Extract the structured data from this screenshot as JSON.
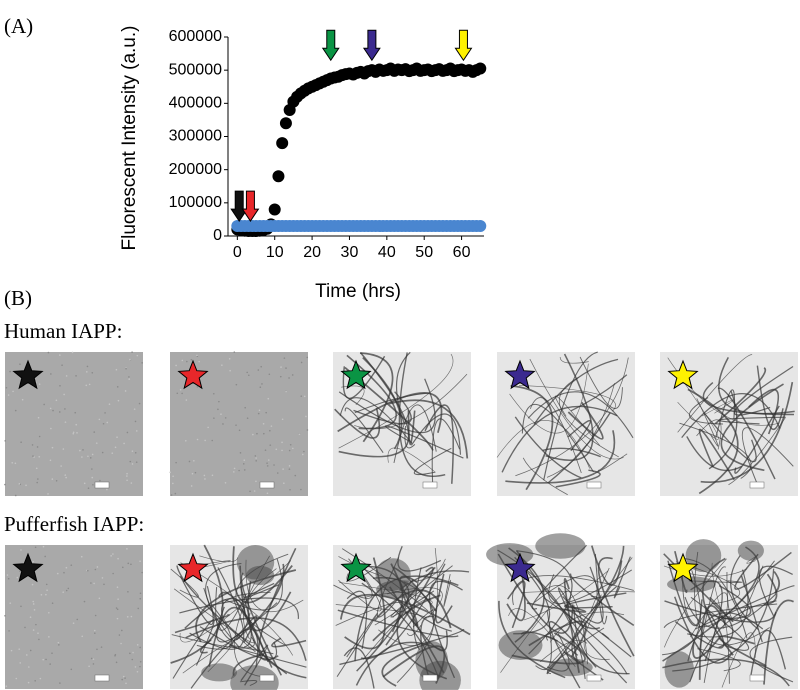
{
  "panel_a_label": "(A)",
  "chart_data": {
    "type": "scatter",
    "x_label": "Time (hrs)",
    "y_label": "Fluorescent Intensity (a.u.)",
    "x": [
      0,
      1,
      2,
      3,
      4,
      5,
      6,
      7,
      8,
      9,
      10,
      11,
      12,
      13,
      14,
      15,
      16,
      17,
      18,
      19,
      20,
      21,
      22,
      23,
      24,
      25,
      26,
      27,
      28,
      29,
      30,
      31,
      32,
      33,
      34,
      35,
      36,
      37,
      38,
      39,
      40,
      41,
      42,
      43,
      44,
      45,
      46,
      47,
      48,
      49,
      50,
      51,
      52,
      53,
      54,
      55,
      56,
      57,
      58,
      59,
      60,
      61,
      62,
      63,
      64,
      65
    ],
    "series": [
      {
        "color": "#000000",
        "values": [
          20000,
          18000,
          16000,
          15000,
          15000,
          15000,
          16000,
          18000,
          22000,
          35000,
          80000,
          180000,
          280000,
          340000,
          380000,
          405000,
          420000,
          430000,
          438000,
          445000,
          450000,
          455000,
          460000,
          465000,
          470000,
          475000,
          478000,
          480000,
          485000,
          488000,
          490000,
          487000,
          492000,
          495000,
          490000,
          497000,
          500000,
          495000,
          502000,
          498000,
          500000,
          505000,
          498000,
          502000,
          500000,
          503000,
          497000,
          500000,
          505000,
          498000,
          500000,
          502000,
          497000,
          500000,
          503000,
          498000,
          500000,
          505000,
          497000,
          500000,
          502000,
          498000,
          500000,
          495000,
          500000,
          505000
        ]
      },
      {
        "color": "#4a86d0",
        "values": [
          30000,
          30000,
          30000,
          30000,
          30000,
          30000,
          30000,
          30000,
          30000,
          30000,
          30000,
          30000,
          30000,
          30000,
          30000,
          30000,
          30000,
          30000,
          30000,
          30000,
          30000,
          30000,
          30000,
          30000,
          30000,
          30000,
          30000,
          30000,
          30000,
          30000,
          30000,
          30000,
          30000,
          30000,
          30000,
          30000,
          30000,
          30000,
          30000,
          30000,
          30000,
          30000,
          30000,
          30000,
          30000,
          30000,
          30000,
          30000,
          30000,
          30000,
          30000,
          30000,
          30000,
          30000,
          30000,
          30000,
          30000,
          30000,
          30000,
          30000,
          30000,
          30000,
          30000,
          30000,
          30000,
          30000
        ]
      }
    ],
    "markers": [
      {
        "x": 0.5,
        "y": 45000,
        "color": "#111111"
      },
      {
        "x": 3.5,
        "y": 45000,
        "color": "#e8272a"
      },
      {
        "x": 25,
        "y": 530000,
        "color": "#0a9444"
      },
      {
        "x": 36,
        "y": 530000,
        "color": "#3b2a8f"
      },
      {
        "x": 60.5,
        "y": 530000,
        "color": "#fff200"
      }
    ],
    "xlim": [
      -2.5,
      66
    ],
    "xticks": [
      0,
      10,
      20,
      30,
      40,
      50,
      60
    ],
    "ylim": [
      0,
      600000
    ],
    "yticks": [
      0,
      100000,
      200000,
      300000,
      400000,
      500000,
      600000
    ]
  },
  "panel_b": {
    "label": "(B)",
    "rows": [
      {
        "label": "Human IAPP:"
      },
      {
        "label": "Pufferfish IAPP:"
      }
    ],
    "star_colors": [
      "#111111",
      "#e8272a",
      "#0a9444",
      "#3b2a8f",
      "#fff200"
    ]
  }
}
